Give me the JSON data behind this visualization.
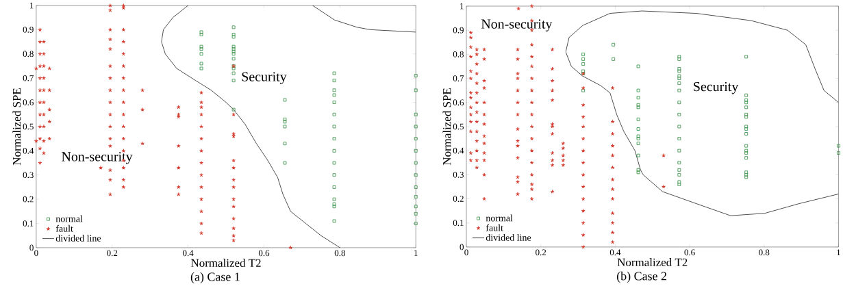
{
  "chart_data": [
    {
      "type": "scatter",
      "xlabel": "Normalized T2",
      "ylabel": "Normalized SPE",
      "xlim": [
        0,
        1
      ],
      "ylim": [
        0,
        1
      ],
      "xticks": [
        0,
        0.2,
        0.4,
        0.6,
        0.8,
        1
      ],
      "yticks": [
        0,
        0.1,
        0.2,
        0.3,
        0.4,
        0.5,
        0.6,
        0.7,
        0.8,
        0.9,
        1
      ],
      "legend": "bottom left",
      "series": [
        {
          "name": "normal",
          "type": "scatter",
          "marker": "square",
          "color": "#2e8b3e",
          "x": [
            0.435,
            0.435,
            0.435,
            0.435,
            0.435,
            0.435,
            0.435,
            0.52,
            0.52,
            0.52,
            0.52,
            0.52,
            0.52,
            0.52,
            0.52,
            0.52,
            0.52,
            0.52,
            0.52,
            0.52,
            0.655,
            0.655,
            0.655,
            0.655,
            0.655,
            0.655,
            0.785,
            0.785,
            0.785,
            0.785,
            0.785,
            0.785,
            0.785,
            0.785,
            0.785,
            0.785,
            0.785,
            0.785,
            0.785,
            0.785,
            0.785,
            0.785,
            1,
            1,
            1,
            1,
            1,
            1,
            1,
            1,
            1,
            1,
            1,
            1,
            1
          ],
          "values": [
            0.89,
            0.88,
            0.83,
            0.82,
            0.8,
            0.76,
            0.74,
            0.91,
            0.88,
            0.87,
            0.83,
            0.82,
            0.81,
            0.8,
            0.78,
            0.75,
            0.74,
            0.72,
            0.69,
            0.57,
            0.61,
            0.53,
            0.52,
            0.5,
            0.43,
            0.35,
            0.72,
            0.69,
            0.65,
            0.63,
            0.6,
            0.55,
            0.5,
            0.45,
            0.4,
            0.35,
            0.3,
            0.25,
            0.2,
            0.18,
            0.17,
            0.11,
            0.71,
            0.65,
            0.55,
            0.5,
            0.45,
            0.4,
            0.35,
            0.3,
            0.25,
            0.21,
            0.17,
            0.14,
            0.1
          ]
        },
        {
          "name": "fault",
          "type": "scatter",
          "marker": "cross",
          "color": "#d43a2c",
          "x": [
            0,
            0,
            0.01,
            0.01,
            0.01,
            0.01,
            0.01,
            0.01,
            0.01,
            0.01,
            0.01,
            0.01,
            0.01,
            0.01,
            0.02,
            0.02,
            0.02,
            0.02,
            0.02,
            0.02,
            0.02,
            0.02,
            0.02,
            0.02,
            0.035,
            0.035,
            0.035,
            0.035,
            0.035,
            0.17,
            0.195,
            0.195,
            0.195,
            0.195,
            0.195,
            0.195,
            0.195,
            0.195,
            0.195,
            0.195,
            0.195,
            0.195,
            0.195,
            0.195,
            0.195,
            0.195,
            0.23,
            0.23,
            0.23,
            0.23,
            0.23,
            0.23,
            0.23,
            0.23,
            0.23,
            0.23,
            0.23,
            0.23,
            0.23,
            0.23,
            0.23,
            0.23,
            0.23,
            0.28,
            0.28,
            0.28,
            0.375,
            0.375,
            0.375,
            0.375,
            0.375,
            0.375,
            0.375,
            0.435,
            0.435,
            0.435,
            0.435,
            0.435,
            0.435,
            0.435,
            0.435,
            0.435,
            0.435,
            0.435,
            0.435,
            0.435,
            0.435,
            0.52,
            0.52,
            0.52,
            0.52,
            0.52,
            0.52,
            0.52,
            0.52,
            0.52,
            0.52,
            0.52,
            0.52,
            0.52,
            0.52,
            0.67
          ],
          "values": [
            0.74,
            0.44,
            0.9,
            0.85,
            0.8,
            0.75,
            0.7,
            0.65,
            0.6,
            0.55,
            0.5,
            0.45,
            0.41,
            0.35,
            0.85,
            0.8,
            0.75,
            0.7,
            0.65,
            0.6,
            0.55,
            0.5,
            0.44,
            0.39,
            0.74,
            0.65,
            0.57,
            0.52,
            0.45,
            0.33,
            1,
            0.98,
            0.9,
            0.86,
            0.82,
            0.75,
            0.7,
            0.65,
            0.6,
            0.55,
            0.5,
            0.45,
            0.42,
            0.32,
            0.28,
            0.22,
            1,
            0.99,
            0.9,
            0.85,
            0.8,
            0.75,
            0.7,
            0.65,
            0.6,
            0.55,
            0.5,
            0.45,
            0.4,
            0.36,
            0.33,
            0.28,
            0.25,
            0.65,
            0.57,
            0.43,
            0.58,
            0.55,
            0.54,
            0.42,
            0.33,
            0.25,
            0.22,
            0.64,
            0.6,
            0.58,
            0.55,
            0.5,
            0.45,
            0.4,
            0.35,
            0.3,
            0.25,
            0.2,
            0.15,
            0.1,
            0.06,
            0.75,
            0.55,
            0.47,
            0.46,
            0.36,
            0.33,
            0.28,
            0.25,
            0.2,
            0.17,
            0.12,
            0.08,
            0.05,
            0.03,
            0
          ]
        },
        {
          "name": "divided line",
          "type": "line",
          "marker": "none",
          "color": "#000000",
          "x": [
            0.4,
            0.36,
            0.335,
            0.33,
            0.34,
            0.37,
            0.42,
            0.461,
            0.5,
            0.52,
            0.55,
            0.58,
            0.61,
            0.636,
            0.65,
            0.67,
            0.71,
            0.75,
            0.8,
            null,
            0.728,
            0.786,
            0.845,
            0.88,
            1
          ],
          "values": [
            1,
            0.95,
            0.9,
            0.85,
            0.8,
            0.74,
            0.69,
            0.65,
            0.6,
            0.57,
            0.51,
            0.43,
            0.36,
            0.29,
            0.22,
            0.15,
            0.1,
            0.05,
            0,
            null,
            1,
            0.94,
            0.91,
            0.9,
            0.89
          ]
        }
      ],
      "annotations": [
        "Non-security",
        "Security",
        "(a) Case 1"
      ]
    },
    {
      "type": "scatter",
      "xlabel": "Normalized T2",
      "ylabel": "Normalized SPE",
      "xlim": [
        0,
        1
      ],
      "ylim": [
        0,
        1
      ],
      "xticks": [
        0,
        0.2,
        0.4,
        0.6,
        0.8,
        1
      ],
      "yticks": [
        0,
        0.1,
        0.2,
        0.3,
        0.4,
        0.5,
        0.6,
        0.7,
        0.8,
        0.9,
        1
      ],
      "legend": "bottom left",
      "series": [
        {
          "name": "normal",
          "type": "scatter",
          "marker": "square",
          "color": "#2e8b3e",
          "x": [
            0.314,
            0.314,
            0.314,
            0.314,
            0.314,
            0.314,
            0.395,
            0.395,
            0.462,
            0.462,
            0.462,
            0.462,
            0.462,
            0.462,
            0.462,
            0.462,
            0.462,
            0.462,
            0.462,
            0.462,
            0.462,
            0.572,
            0.572,
            0.572,
            0.572,
            0.572,
            0.572,
            0.572,
            0.572,
            0.572,
            0.572,
            0.572,
            0.572,
            0.572,
            0.572,
            0.572,
            0.572,
            0.572,
            0.572,
            0.752,
            0.752,
            0.752,
            0.752,
            0.752,
            0.752,
            0.752,
            0.752,
            0.752,
            0.752,
            0.752,
            0.752,
            0.752,
            0.752,
            0.752,
            0.752,
            0.752,
            1,
            1
          ],
          "values": [
            0.8,
            0.78,
            0.76,
            0.73,
            0.72,
            0.65,
            0.84,
            0.78,
            0.75,
            0.65,
            0.62,
            0.59,
            0.58,
            0.53,
            0.49,
            0.46,
            0.45,
            0.43,
            0.38,
            0.32,
            0.31,
            0.79,
            0.78,
            0.74,
            0.73,
            0.71,
            0.7,
            0.68,
            0.65,
            0.6,
            0.55,
            0.5,
            0.45,
            0.4,
            0.35,
            0.32,
            0.3,
            0.27,
            0.26,
            0.79,
            0.63,
            0.61,
            0.6,
            0.58,
            0.55,
            0.54,
            0.5,
            0.49,
            0.47,
            0.42,
            0.4,
            0.39,
            0.37,
            0.31,
            0.3,
            0.29,
            0.42,
            0.39
          ]
        },
        {
          "name": "fault",
          "type": "scatter",
          "marker": "cross",
          "color": "#d43a2c",
          "x": [
            0.012,
            0.012,
            0.012,
            0.012,
            0.012,
            0.012,
            0.012,
            0.012,
            0.012,
            0.012,
            0.012,
            0.012,
            0.012,
            0.012,
            0.028,
            0.028,
            0.028,
            0.028,
            0.028,
            0.028,
            0.028,
            0.028,
            0.028,
            0.028,
            0.028,
            0.028,
            0.028,
            0.028,
            0.048,
            0.048,
            0.048,
            0.048,
            0.048,
            0.048,
            0.048,
            0.048,
            0.048,
            0.048,
            0.048,
            0.048,
            0.048,
            0.14,
            0.138,
            0.138,
            0.138,
            0.138,
            0.138,
            0.138,
            0.138,
            0.138,
            0.138,
            0.138,
            0.138,
            0.138,
            0.138,
            0.138,
            0.176,
            0.176,
            0.176,
            0.176,
            0.176,
            0.176,
            0.176,
            0.176,
            0.176,
            0.176,
            0.176,
            0.176,
            0.176,
            0.176,
            0.176,
            0.176,
            0.176,
            0.176,
            0.231,
            0.231,
            0.231,
            0.231,
            0.231,
            0.231,
            0.231,
            0.231,
            0.231,
            0.231,
            0.231,
            0.231,
            0.26,
            0.26,
            0.26,
            0.26,
            0.26,
            0.314,
            0.314,
            0.314,
            0.314,
            0.314,
            0.314,
            0.314,
            0.314,
            0.314,
            0.314,
            0.314,
            0.314,
            0.314,
            0.314,
            0.314,
            0.393,
            0.393,
            0.393,
            0.393,
            0.393,
            0.393,
            0.393,
            0.393,
            0.393,
            0.393,
            0.393,
            0.393,
            0.393,
            0.53,
            0.53
          ],
          "values": [
            0.89,
            0.87,
            0.83,
            0.79,
            0.73,
            0.7,
            0.64,
            0.62,
            0.58,
            0.55,
            0.52,
            0.48,
            0.39,
            0.36,
            0.82,
            0.8,
            0.76,
            0.72,
            0.68,
            0.64,
            0.6,
            0.56,
            0.52,
            0.48,
            0.44,
            0.4,
            0.36,
            0.33,
            0.82,
            0.78,
            0.69,
            0.66,
            0.6,
            0.55,
            0.51,
            0.46,
            0.43,
            0.39,
            0.36,
            0.3,
            0.2,
            0.99,
            0.82,
            0.78,
            0.72,
            0.7,
            0.65,
            0.6,
            0.55,
            0.49,
            0.44,
            0.42,
            0.37,
            0.29,
            0.27,
            0.22,
            1,
            0.94,
            0.9,
            0.84,
            0.79,
            0.75,
            0.7,
            0.65,
            0.6,
            0.55,
            0.5,
            0.45,
            0.4,
            0.35,
            0.3,
            0.26,
            0.24,
            0.2,
            0.82,
            0.74,
            0.69,
            0.65,
            0.61,
            0.51,
            0.5,
            0.47,
            0.39,
            0.36,
            0.34,
            0.23,
            0.43,
            0.41,
            0.38,
            0.36,
            0.34,
            0.72,
            0.66,
            0.59,
            0.54,
            0.5,
            0.45,
            0.4,
            0.35,
            0.3,
            0.25,
            0.2,
            0.15,
            0.1,
            0.05,
            0,
            0.66,
            0.52,
            0.47,
            0.42,
            0.38,
            0.33,
            0.28,
            0.24,
            0.2,
            0.14,
            0.1,
            0.06,
            0.02,
            0.38,
            0.25
          ]
        },
        {
          "name": "divided line",
          "type": "line",
          "marker": "none",
          "color": "#000000",
          "x": [
            1,
            0.961,
            0.937,
            0.912,
            0.863,
            0.765,
            0.618,
            0.472,
            0.386,
            0.313,
            0.276,
            0.267,
            0.282,
            0.312,
            0.361,
            0.386,
            0.404,
            0.423,
            0.453,
            0.468,
            0.475,
            0.527,
            0.618,
            0.71,
            0.802,
            0.894,
            1
          ],
          "values": [
            0.6,
            0.65,
            0.74,
            0.84,
            0.9,
            0.94,
            0.97,
            0.98,
            0.97,
            0.92,
            0.87,
            0.81,
            0.75,
            0.71,
            0.67,
            0.64,
            0.55,
            0.48,
            0.4,
            0.32,
            0.3,
            0.23,
            0.18,
            0.13,
            0.14,
            0.18,
            0.22
          ]
        }
      ],
      "annotations": [
        "Non-security",
        "Security",
        "(b) Case 2"
      ]
    }
  ]
}
